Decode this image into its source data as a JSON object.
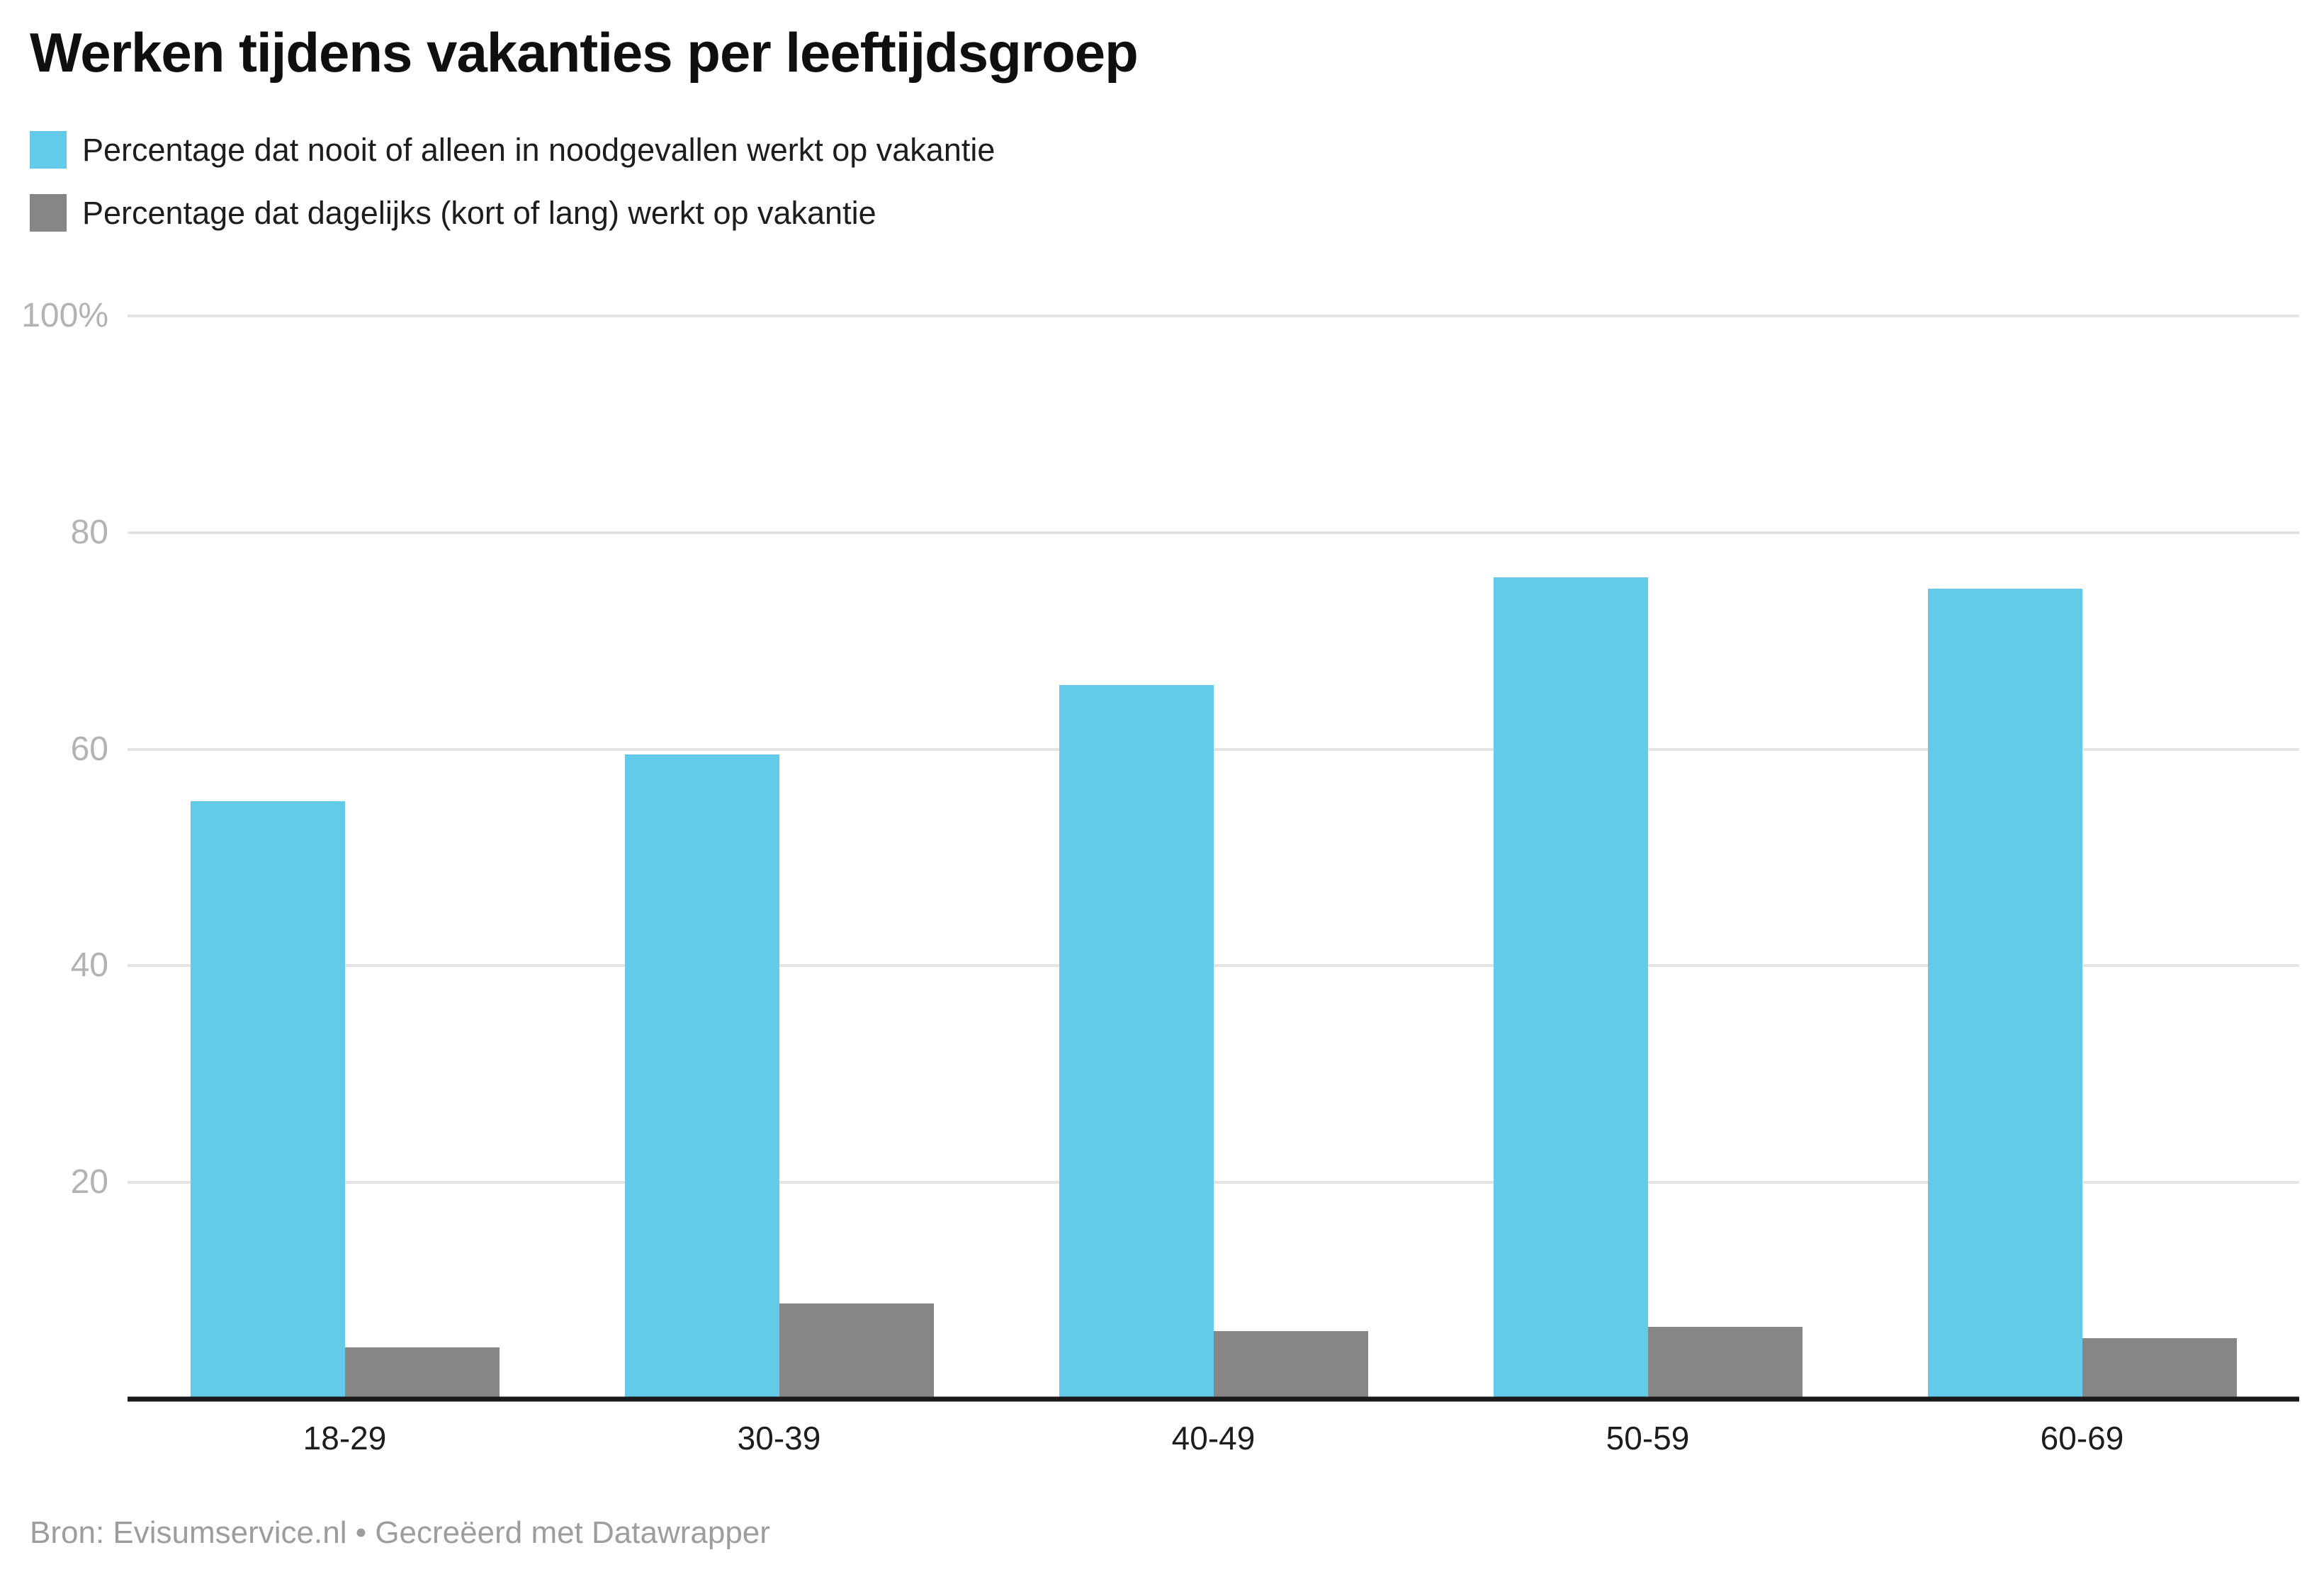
{
  "title": "Werken tijdens vakanties per leeftijdsgroep",
  "legend": [
    {
      "label": "Percentage dat nooit of alleen in noodgevallen werkt op vakantie",
      "color": "#63cbe9"
    },
    {
      "label": "Percentage dat dagelijks (kort of lang) werkt op vakantie",
      "color": "#868686"
    }
  ],
  "footer": "Bron: Evisumservice.nl • Gecreëerd met Datawrapper",
  "colors": {
    "series_blue": "#63cbe9",
    "series_gray": "#868686",
    "gridline": "#e4e4e4",
    "axis_line": "#1a1a1a",
    "tick_label": "#b3b3b3",
    "category_label": "#1d1d1d",
    "background": "#ffffff"
  },
  "chart_data": {
    "type": "bar",
    "title": "Werken tijdens vakanties per leeftijdsgroep",
    "categories": [
      "18-29",
      "30-39",
      "40-49",
      "50-59",
      "60-69"
    ],
    "series": [
      {
        "name": "Percentage dat nooit of alleen in noodgevallen werkt op vakantie",
        "color": "#63cbe9",
        "values": [
          55.2,
          59.5,
          65.9,
          75.9,
          74.8
        ]
      },
      {
        "name": "Percentage dat dagelijks (kort of lang) werkt op vakantie",
        "color": "#868686",
        "values": [
          4.8,
          8.8,
          6.3,
          6.7,
          5.6
        ]
      }
    ],
    "xlabel": "",
    "ylabel": "",
    "ylim": [
      0,
      100
    ],
    "yticks": [
      {
        "label": "100%",
        "value": 100
      },
      {
        "label": "80",
        "value": 80
      },
      {
        "label": "60",
        "value": 60
      },
      {
        "label": "40",
        "value": 40
      },
      {
        "label": "20",
        "value": 20
      }
    ],
    "grid": true,
    "legend_position": "top-left",
    "source_note": "Bron: Evisumservice.nl • Gecreëerd met Datawrapper"
  }
}
